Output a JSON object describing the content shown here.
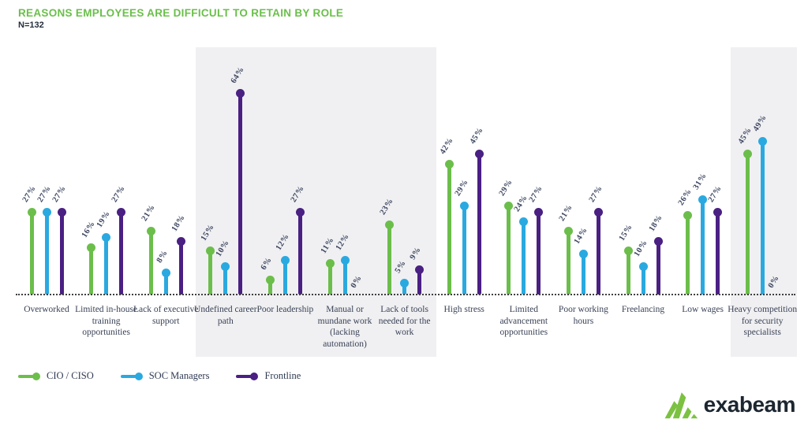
{
  "header": {
    "title": "REASONS EMPLOYEES ARE DIFFICULT TO RETAIN BY ROLE",
    "subtitle": "N=132"
  },
  "chart_data": {
    "type": "bar",
    "style": "lollipop",
    "title": "REASONS EMPLOYEES ARE DIFFICULT TO RETAIN BY ROLE",
    "n_label": "N=132",
    "value_suffix": "%",
    "ylim": [
      0,
      70
    ],
    "grid": false,
    "baseline_style": "dotted",
    "legend_position": "bottom-left",
    "highlighted_category_indexes": [
      3,
      4,
      5,
      6,
      12
    ],
    "categories": [
      "Overworked",
      "Limited in-house training opportunities",
      "Lack of executive support",
      "Undefined career path",
      "Poor leadership",
      "Manual or mundane work (lacking automation)",
      "Lack of tools needed for the work",
      "High stress",
      "Limited advancement opportunities",
      "Poor working hours",
      "Freelancing",
      "Low wages",
      "Heavy competition for security specialists"
    ],
    "series": [
      {
        "name": "CIO / CISO",
        "color": "#6cbe4b",
        "values": [
          27,
          16,
          21,
          15,
          6,
          11,
          23,
          42,
          29,
          21,
          15,
          26,
          45
        ]
      },
      {
        "name": "SOC Managers",
        "color": "#2aa9e0",
        "values": [
          27,
          19,
          8,
          10,
          12,
          12,
          5,
          29,
          24,
          14,
          10,
          31,
          49
        ]
      },
      {
        "name": "Frontline",
        "color": "#4a2083",
        "values": [
          27,
          27,
          18,
          64,
          27,
          0,
          9,
          45,
          27,
          27,
          18,
          27,
          0
        ]
      }
    ]
  },
  "legend": {
    "items": [
      {
        "label": "CIO / CISO",
        "color": "#6cbe4b"
      },
      {
        "label": "SOC Managers",
        "color": "#2aa9e0"
      },
      {
        "label": "Frontline",
        "color": "#4a2083"
      }
    ]
  },
  "logo": {
    "text": "exabeam",
    "icon_color": "#7cc142"
  },
  "colors": {
    "title_green": "#6abf4a",
    "band_gray": "#f0f0f2",
    "value_label": "#3c4660",
    "category_label": "#3a4256"
  }
}
